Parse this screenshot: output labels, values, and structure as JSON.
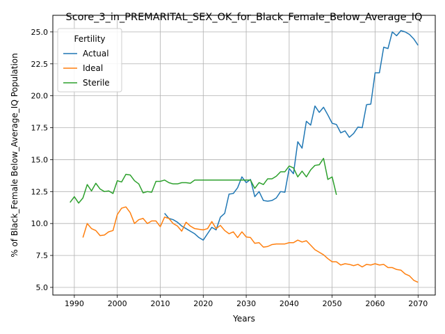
{
  "chart_data": {
    "type": "line",
    "title": "Score_3_in_PREMARITAL_SEX_OK_for_Black_Female_Below_Average_IQ",
    "xlabel": "Years",
    "ylabel": "% of Black_Female Below_Average_IQ Population",
    "xlim": [
      1985,
      2074
    ],
    "ylim": [
      4.4,
      26.3
    ],
    "xticks": [
      1990,
      2000,
      2010,
      2020,
      2030,
      2040,
      2050,
      2060,
      2070
    ],
    "yticks": [
      5.0,
      7.5,
      10.0,
      12.5,
      15.0,
      17.5,
      20.0,
      22.5,
      25.0
    ],
    "xtick_labels": [
      "1990",
      "2000",
      "2010",
      "2020",
      "2030",
      "2040",
      "2050",
      "2060",
      "2070"
    ],
    "ytick_labels": [
      "5.0",
      "7.5",
      "10.0",
      "12.5",
      "15.0",
      "17.5",
      "20.0",
      "22.5",
      "25.0"
    ],
    "grid": true,
    "legend": {
      "title": "Fertility",
      "position": "top-left"
    },
    "series": [
      {
        "name": "Actual",
        "color": "#1f77b4",
        "x": [
          2011,
          2012,
          2013,
          2014,
          2015,
          2016,
          2017,
          2018,
          2019,
          2020,
          2021,
          2022,
          2023,
          2024,
          2025,
          2026,
          2027,
          2028,
          2029,
          2030,
          2031,
          2032,
          2033,
          2034,
          2035,
          2036,
          2037,
          2038,
          2039,
          2040,
          2041,
          2042,
          2043,
          2044,
          2045,
          2046,
          2047,
          2048,
          2049,
          2050,
          2051,
          2052,
          2053,
          2054,
          2055,
          2056,
          2057,
          2058,
          2059,
          2060,
          2061,
          2062,
          2063,
          2064,
          2065,
          2066,
          2067,
          2068,
          2069,
          2070
        ],
        "values": [
          10.8,
          10.4,
          10.3,
          10.1,
          9.8,
          9.6,
          9.4,
          9.2,
          8.9,
          8.7,
          9.2,
          9.7,
          9.5,
          10.5,
          10.8,
          12.3,
          12.35,
          12.8,
          13.65,
          13.2,
          13.45,
          12.1,
          12.5,
          11.8,
          11.75,
          11.8,
          12.0,
          12.5,
          12.45,
          14.3,
          13.9,
          16.4,
          15.9,
          18.0,
          17.7,
          19.2,
          18.7,
          19.1,
          18.5,
          17.85,
          17.75,
          17.1,
          17.25,
          16.75,
          17.05,
          17.55,
          17.5,
          19.3,
          19.35,
          21.8,
          21.8,
          23.8,
          23.7,
          25.0,
          24.7,
          25.1,
          25.0,
          24.8,
          24.45,
          23.95
        ]
      },
      {
        "name": "Ideal",
        "color": "#ff7f0e",
        "x": [
          1992,
          1993,
          1994,
          1995,
          1996,
          1997,
          1998,
          1999,
          2000,
          2001,
          2002,
          2003,
          2004,
          2005,
          2006,
          2007,
          2008,
          2009,
          2010,
          2011,
          2012,
          2013,
          2014,
          2015,
          2016,
          2017,
          2018,
          2019,
          2020,
          2021,
          2022,
          2023,
          2024,
          2025,
          2026,
          2027,
          2028,
          2029,
          2030,
          2031,
          2032,
          2033,
          2034,
          2035,
          2036,
          2037,
          2038,
          2039,
          2040,
          2041,
          2042,
          2043,
          2044,
          2045,
          2046,
          2047,
          2048,
          2049,
          2050,
          2051,
          2052,
          2053,
          2054,
          2055,
          2056,
          2057,
          2058,
          2059,
          2060,
          2061,
          2062,
          2063,
          2064,
          2065,
          2066,
          2067,
          2068,
          2069,
          2070
        ],
        "values": [
          8.9,
          10.0,
          9.6,
          9.45,
          9.05,
          9.1,
          9.35,
          9.45,
          10.7,
          11.2,
          11.3,
          10.85,
          10.0,
          10.3,
          10.4,
          10.0,
          10.2,
          10.2,
          9.75,
          10.5,
          10.4,
          10.0,
          9.8,
          9.4,
          10.1,
          9.8,
          9.6,
          9.55,
          9.5,
          9.6,
          10.15,
          9.6,
          9.85,
          9.45,
          9.2,
          9.35,
          8.9,
          9.35,
          8.95,
          8.9,
          8.45,
          8.5,
          8.15,
          8.2,
          8.35,
          8.4,
          8.4,
          8.4,
          8.5,
          8.5,
          8.7,
          8.55,
          8.65,
          8.3,
          7.95,
          7.75,
          7.55,
          7.25,
          7.0,
          7.0,
          6.75,
          6.85,
          6.8,
          6.7,
          6.8,
          6.6,
          6.8,
          6.75,
          6.85,
          6.75,
          6.8,
          6.55,
          6.55,
          6.4,
          6.35,
          6.05,
          5.9,
          5.55,
          5.4
        ]
      },
      {
        "name": "Sterile",
        "color": "#2ca02c",
        "x": [
          1989,
          1990,
          1991,
          1992,
          1993,
          1994,
          1995,
          1996,
          1997,
          1998,
          1999,
          2000,
          2001,
          2002,
          2003,
          2004,
          2005,
          2006,
          2007,
          2008,
          2009,
          2010,
          2011,
          2012,
          2013,
          2014,
          2015,
          2016,
          2017,
          2018,
          2019,
          2020,
          2021,
          2022,
          2023,
          2024,
          2025,
          2026,
          2027,
          2028,
          2029,
          2030,
          2031,
          2032,
          2033,
          2034,
          2035,
          2036,
          2037,
          2038,
          2039,
          2040,
          2041,
          2042,
          2043,
          2044,
          2045,
          2046,
          2047,
          2048,
          2049,
          2050,
          2051
        ],
        "values": [
          11.65,
          12.1,
          11.6,
          12.0,
          13.05,
          12.55,
          13.15,
          12.7,
          12.5,
          12.55,
          12.35,
          13.35,
          13.25,
          13.85,
          13.8,
          13.35,
          13.1,
          12.4,
          12.5,
          12.45,
          13.3,
          13.3,
          13.4,
          13.2,
          13.1,
          13.1,
          13.2,
          13.2,
          13.15,
          13.4,
          13.4,
          13.4,
          13.4,
          13.4,
          13.4,
          13.4,
          13.4,
          13.4,
          13.4,
          13.4,
          13.4,
          13.4,
          13.4,
          12.75,
          13.2,
          13.05,
          13.5,
          13.5,
          13.7,
          14.05,
          14.05,
          14.5,
          14.35,
          13.65,
          14.1,
          13.65,
          14.2,
          14.55,
          14.6,
          15.1,
          13.45,
          13.65,
          12.25
        ]
      }
    ]
  }
}
